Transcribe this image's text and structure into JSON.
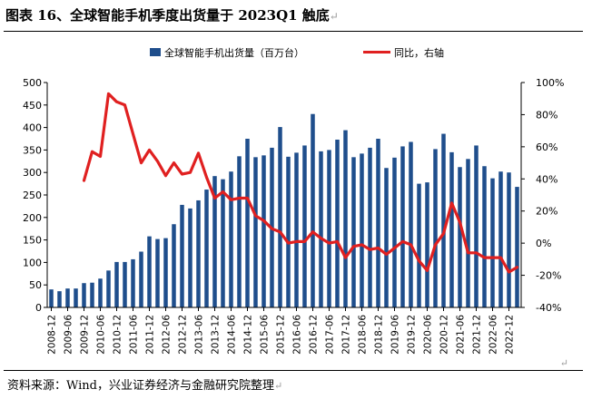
{
  "title": "图表 16、全球智能手机季度出货量于 2023Q1 触底",
  "source": "资料来源：Wind，兴业证券经济与金融研究院整理",
  "colors": {
    "bar": "#1f4e8c",
    "line": "#e02020"
  },
  "chart_data": {
    "type": "bar",
    "title": "",
    "xlabel": "",
    "ylabel": "",
    "ylim": [
      0,
      500
    ],
    "y2lim": [
      -40,
      100
    ],
    "legend_position": "top-center",
    "grid": false,
    "yticks": [
      "0",
      "50",
      "100",
      "150",
      "200",
      "250",
      "300",
      "350",
      "400",
      "450",
      "500"
    ],
    "y2ticks": [
      "-40%",
      "-20%",
      "0%",
      "20%",
      "40%",
      "60%",
      "80%",
      "100%"
    ],
    "xtick_labels": [
      "2008-12",
      "2009-06",
      "2009-12",
      "2010-06",
      "2010-12",
      "2011-06",
      "2011-12",
      "2012-06",
      "2012-12",
      "2013-06",
      "2013-12",
      "2014-06",
      "2014-12",
      "2015-06",
      "2015-12",
      "2016-06",
      "2016-12",
      "2017-06",
      "2017-12",
      "2018-06",
      "2018-12",
      "2019-06",
      "2019-12",
      "2020-06",
      "2020-12",
      "2021-06",
      "2021-12",
      "2022-06",
      "2022-12"
    ],
    "categories": [
      "2008Q4",
      "2009Q1",
      "2009Q2",
      "2009Q3",
      "2009Q4",
      "2010Q1",
      "2010Q2",
      "2010Q3",
      "2010Q4",
      "2011Q1",
      "2011Q2",
      "2011Q3",
      "2011Q4",
      "2012Q1",
      "2012Q2",
      "2012Q3",
      "2012Q4",
      "2013Q1",
      "2013Q2",
      "2013Q3",
      "2013Q4",
      "2014Q1",
      "2014Q2",
      "2014Q3",
      "2014Q4",
      "2015Q1",
      "2015Q2",
      "2015Q3",
      "2015Q4",
      "2016Q1",
      "2016Q2",
      "2016Q3",
      "2016Q4",
      "2017Q1",
      "2017Q2",
      "2017Q3",
      "2017Q4",
      "2018Q1",
      "2018Q2",
      "2018Q3",
      "2018Q4",
      "2019Q1",
      "2019Q2",
      "2019Q3",
      "2019Q4",
      "2020Q1",
      "2020Q2",
      "2020Q3",
      "2020Q4",
      "2021Q1",
      "2021Q2",
      "2021Q3",
      "2021Q4",
      "2022Q1",
      "2022Q2",
      "2022Q3",
      "2022Q4",
      "2023Q1"
    ],
    "series": [
      {
        "name": "全球智能手机出货量（百万台）",
        "type": "bar",
        "values": [
          40,
          36,
          42,
          42,
          54,
          55,
          64,
          82,
          101,
          101,
          107,
          124,
          158,
          152,
          154,
          185,
          228,
          220,
          238,
          262,
          292,
          285,
          302,
          336,
          375,
          334,
          338,
          355,
          401,
          335,
          344,
          360,
          430,
          347,
          350,
          373,
          394,
          334,
          342,
          355,
          375,
          310,
          333,
          358,
          368,
          275,
          278,
          352,
          386,
          345,
          312,
          330,
          360,
          314,
          287,
          302,
          300,
          268
        ]
      },
      {
        "name": "同比，右轴",
        "type": "line",
        "axis": "right",
        "values": [
          null,
          null,
          null,
          null,
          39,
          57,
          54,
          93,
          88,
          86,
          68,
          50,
          58,
          51,
          42,
          50,
          43,
          44,
          56,
          41,
          28,
          32,
          27,
          28,
          28,
          17,
          14,
          9,
          7,
          0,
          1,
          1,
          7,
          3,
          0,
          1,
          -9,
          -2,
          -1,
          -4,
          -3,
          -7,
          -3,
          1,
          -1,
          -11,
          -17,
          -1,
          6,
          25,
          13,
          -6,
          -6,
          -9,
          -9,
          -9,
          -18,
          -15
        ]
      }
    ]
  }
}
